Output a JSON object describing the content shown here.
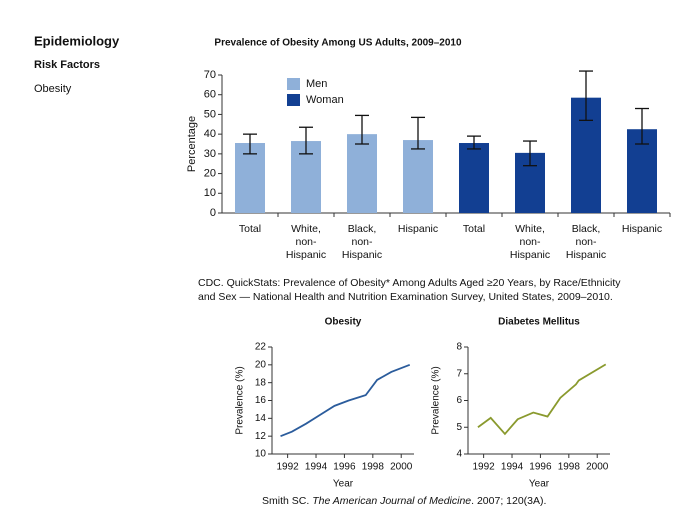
{
  "sidebar": {
    "title": "Epidemiology",
    "section": "Risk Factors",
    "item": "Obesity"
  },
  "sources": {
    "bar": "CDC. QuickStats: Prevalence of Obesity* Among Adults Aged ≥20 Years, by Race/Ethnicity and Sex — National Health and Nutrition Examination Survey, United States, 2009–2010.",
    "lines": [
      "Smith SC. ",
      "The American Journal of Medicine",
      ". 2007; 120(3A)."
    ]
  },
  "chart_data": [
    {
      "type": "bar",
      "title": "Prevalence of Obesity Among US Adults, 2009–2010",
      "ylabel": "Percentage",
      "categories": [
        "Total",
        "White, non-Hispanic",
        "Black, non-Hispanic",
        "Hispanic",
        "Total",
        "White, non-Hispanic",
        "Black, non-Hispanic",
        "Hispanic"
      ],
      "series": [
        {
          "name": "Men",
          "color": "#8fb0d9",
          "values": [
            35.5,
            36.5,
            40,
            37,
            null,
            null,
            null,
            null
          ],
          "ci": [
            [
              30,
              40
            ],
            [
              30,
              43.5
            ],
            [
              35,
              49.5
            ],
            [
              32.5,
              48.5
            ],
            null,
            null,
            null,
            null
          ]
        },
        {
          "name": "Woman",
          "color": "#123f92",
          "values": [
            null,
            null,
            null,
            null,
            35.5,
            30.5,
            58.5,
            42.5
          ],
          "ci": [
            null,
            null,
            null,
            null,
            [
              32.5,
              39
            ],
            [
              24,
              36.5
            ],
            [
              47,
              72
            ],
            [
              35,
              53
            ]
          ]
        }
      ],
      "ylim": [
        0,
        70
      ],
      "yticks": [
        0,
        10,
        20,
        30,
        40,
        50,
        60,
        70
      ],
      "legend": "top-left"
    },
    {
      "type": "line",
      "title": "Obesity",
      "xlabel": "Year",
      "ylabel": "Prevalence (%)",
      "color": "#2b5c9c",
      "x": [
        1991.5,
        1992.3,
        1993.3,
        1994.3,
        1995.3,
        1996.3,
        1997.5,
        1998.3,
        1999.3,
        2000.6
      ],
      "values": [
        12,
        12.5,
        13.4,
        14.4,
        15.4,
        16,
        16.6,
        18.3,
        19.2,
        20
      ],
      "xlim": [
        1990.9,
        2000.9
      ],
      "xticks": [
        1992,
        1994,
        1996,
        1998,
        2000
      ],
      "ylim": [
        10,
        22
      ],
      "yticks": [
        10,
        12,
        14,
        16,
        18,
        20,
        22
      ]
    },
    {
      "type": "line",
      "title": "Diabetes Mellitus",
      "xlabel": "Year",
      "ylabel": "Prevalence (%)",
      "color": "#8a9a2e",
      "x": [
        1991.6,
        1992.5,
        1993.5,
        1994.4,
        1995.5,
        1996.5,
        1997.4,
        1998.5,
        1998.7,
        2000.6
      ],
      "values": [
        5,
        5.35,
        4.75,
        5.3,
        5.55,
        5.4,
        6.1,
        6.6,
        6.75,
        7.35
      ],
      "xlim": [
        1990.9,
        2000.9
      ],
      "xticks": [
        1992,
        1994,
        1996,
        1998,
        2000
      ],
      "ylim": [
        4,
        8
      ],
      "yticks": [
        4,
        5,
        6,
        7,
        8
      ]
    }
  ]
}
